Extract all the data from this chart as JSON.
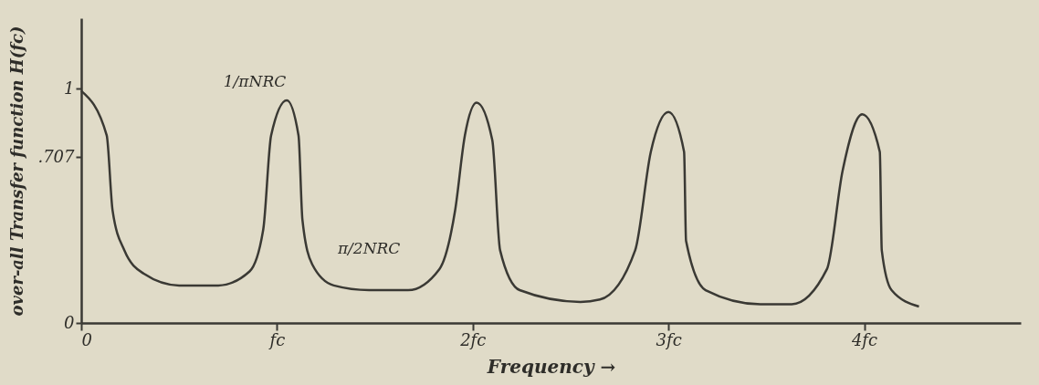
{
  "chart_data": {
    "type": "line",
    "xlabel": "Frequency →",
    "ylabel": "over-all Transfer function H(fc)",
    "x": [
      0,
      0.13,
      0.16,
      0.22,
      0.32,
      0.5,
      0.7,
      0.86,
      0.93,
      0.97,
      1.05,
      1.11,
      1.13,
      1.18,
      1.29,
      1.47,
      1.67,
      1.83,
      1.91,
      1.96,
      2.02,
      2.1,
      2.14,
      2.24,
      2.55,
      2.65,
      2.83,
      2.91,
      3.0,
      3.08,
      3.09,
      3.19,
      3.47,
      3.63,
      3.81,
      3.89,
      3.99,
      4.08,
      4.09,
      4.14,
      4.28
    ],
    "series": [
      {
        "color": "#3a3934",
        "values": [
          0.99,
          0.8,
          0.48,
          0.31,
          0.21,
          0.16,
          0.16,
          0.22,
          0.4,
          0.8,
          0.95,
          0.8,
          0.44,
          0.25,
          0.16,
          0.14,
          0.14,
          0.23,
          0.48,
          0.8,
          0.94,
          0.78,
          0.31,
          0.14,
          0.09,
          0.1,
          0.31,
          0.73,
          0.9,
          0.73,
          0.35,
          0.14,
          0.08,
          0.08,
          0.23,
          0.65,
          0.89,
          0.73,
          0.31,
          0.14,
          0.07
        ]
      }
    ],
    "xlim": [
      0,
      4.8
    ],
    "ylim": [
      0,
      1.3
    ],
    "xticks": [
      0,
      {
        "value": 1,
        "label": "fc"
      },
      {
        "value": 2,
        "label": "2fc"
      },
      {
        "value": 3,
        "label": "3fc"
      },
      {
        "value": 4,
        "label": "4fc"
      }
    ],
    "yticks": [
      0,
      {
        "value": 0.707,
        "label": ".707"
      },
      1
    ],
    "grid": false,
    "legend": false,
    "marker": "none",
    "line_style": "solid",
    "annotations": [
      "1/πNRC",
      {
        "text": "π/2NRC",
        "x": 1.47,
        "y": 0.14
      }
    ]
  }
}
